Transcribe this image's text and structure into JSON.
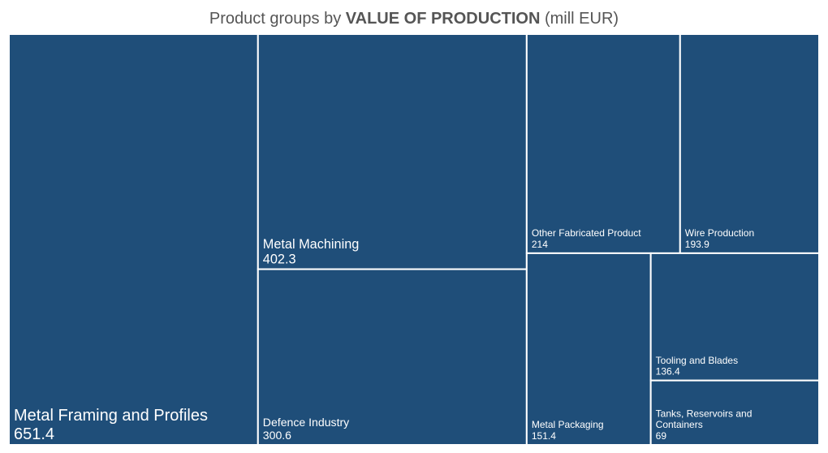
{
  "chart_data": {
    "type": "treemap",
    "title_prefix": "Product groups by ",
    "title_bold": "VALUE OF PRODUCTION",
    "title_suffix": " (mill EUR)",
    "colors": {
      "tile": "#1f4e79",
      "border": "#ffffff",
      "label": "#ffffff",
      "title": "#555555"
    },
    "items": [
      {
        "label": "Metal Framing and Profiles",
        "value": 651.4,
        "value_text": "651.4"
      },
      {
        "label": "Metal Machining",
        "value": 402.3,
        "value_text": "402.3"
      },
      {
        "label": "Defence Industry",
        "value": 300.6,
        "value_text": "300.6"
      },
      {
        "label": "Other Fabricated Product",
        "value": 214,
        "value_text": "214"
      },
      {
        "label": "Wire Production",
        "value": 193.9,
        "value_text": "193.9"
      },
      {
        "label": "Metal Packaging",
        "value": 151.4,
        "value_text": "151.4"
      },
      {
        "label": "Tooling and Blades",
        "value": 136.4,
        "value_text": "136.4"
      },
      {
        "label": "Tanks, Reservoirs and Containers",
        "value": 69,
        "value_text": "69"
      }
    ]
  }
}
